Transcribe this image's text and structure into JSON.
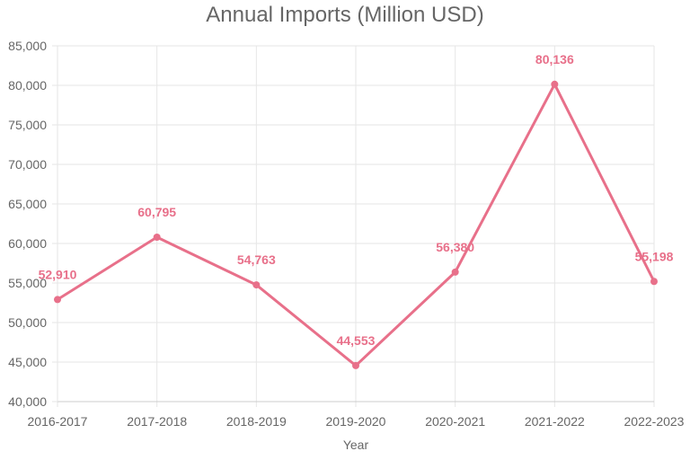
{
  "chart_data": {
    "type": "line",
    "title": "Annual Imports (Million USD)",
    "xlabel": "Year",
    "ylabel": "",
    "categories": [
      "2016-2017",
      "2017-2018",
      "2018-2019",
      "2019-2020",
      "2020-2021",
      "2021-2022",
      "2022-2023"
    ],
    "series": [
      {
        "values": [
          52910,
          60795,
          54763,
          44553,
          56380,
          80136,
          55198
        ]
      }
    ],
    "data_labels": [
      "52,910",
      "60,795",
      "54,763",
      "44,553",
      "56,380",
      "80,136",
      "55,198"
    ],
    "yticks": [
      "40,000",
      "45,000",
      "50,000",
      "55,000",
      "60,000",
      "65,000",
      "70,000",
      "75,000",
      "80,000",
      "85,000"
    ],
    "ylim": [
      40000,
      85000
    ],
    "grid": true,
    "legend": "none",
    "colors": {
      "line": "#e8708a",
      "text": "#666666",
      "grid": "#e6e6e6"
    }
  }
}
